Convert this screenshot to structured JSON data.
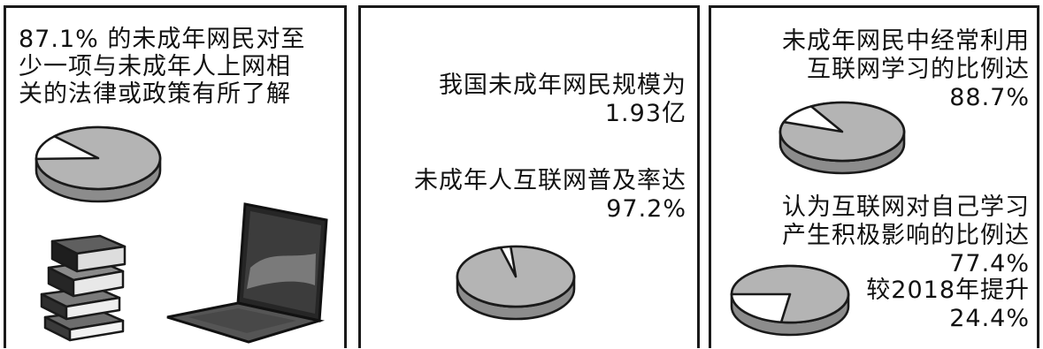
{
  "colors": {
    "slice": "#b4b4b4",
    "rim": "#8c8c8c",
    "rest": "#ffffff",
    "stroke": "#1a1a1a"
  },
  "icons": [
    "book-stack-icon",
    "laptop-icon"
  ],
  "panel1": {
    "lines": [
      "87.1% 的未成年网民对至",
      "少一项与未成年人上网相",
      "关的法律或政策有所了解"
    ]
  },
  "panel2": {
    "scale_lines": [
      "我国未成年网民规模为",
      "1.93亿"
    ],
    "rate_lines": [
      "未成年人互联网普及率达",
      "97.2%"
    ]
  },
  "panel3": {
    "study_lines": [
      "未成年网民中经常利用",
      "互联网学习的比例达",
      "88.7%"
    ],
    "positive_lines": [
      "认为互联网对自己学习",
      "产生积极影响的比例达",
      "77.4%"
    ],
    "increase_lines": [
      "较2018年提升",
      "24.4%"
    ]
  },
  "chart_data": [
    {
      "type": "pie",
      "values": [
        87.1,
        12.9
      ]
    },
    {
      "type": "pie",
      "values": [
        97.2,
        2.8
      ]
    },
    {
      "type": "pie",
      "values": [
        88.7,
        11.3
      ]
    },
    {
      "type": "pie",
      "values": [
        77.4,
        22.6
      ]
    }
  ]
}
